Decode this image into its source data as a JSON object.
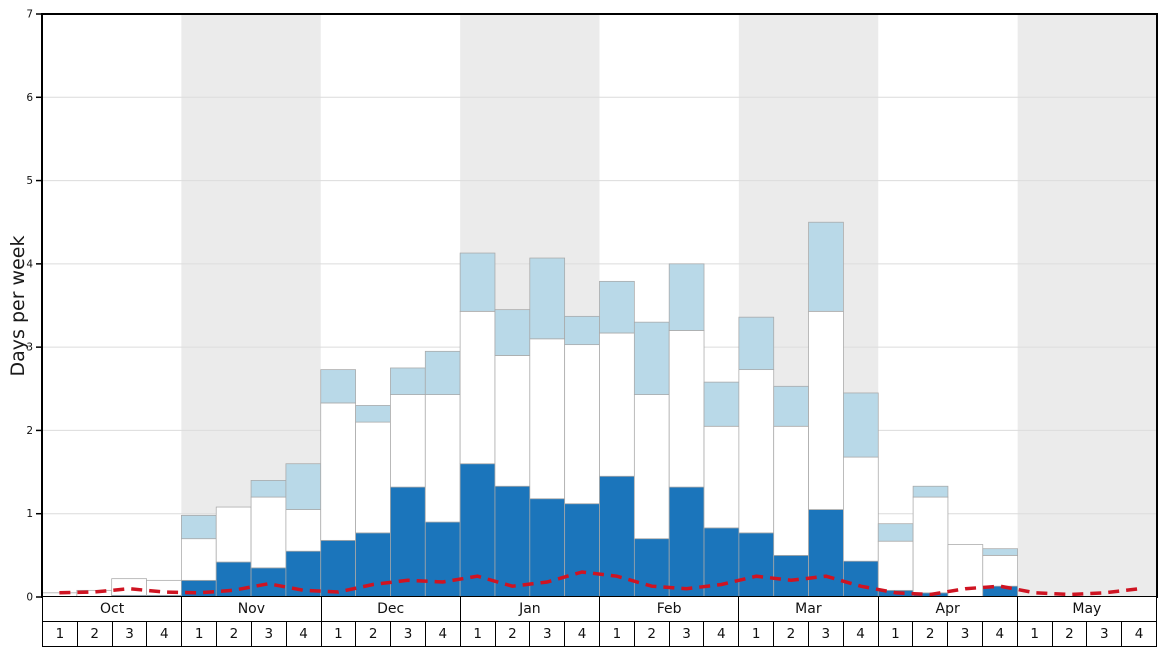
{
  "chart_data": {
    "type": "bar",
    "title": "",
    "xlabel": "",
    "ylabel": "Days per week",
    "ylim": [
      0,
      7
    ],
    "yticks": [
      0,
      1,
      2,
      3,
      4,
      5,
      6,
      7
    ],
    "grid": true,
    "legend": "none",
    "months": [
      "Oct",
      "Nov",
      "Dec",
      "Jan",
      "Feb",
      "Mar",
      "Apr",
      "May"
    ],
    "weeks_per_month": 4,
    "week_labels": [
      "1",
      "2",
      "3",
      "4"
    ],
    "shaded_months": [
      "Nov",
      "Jan",
      "Mar",
      "May"
    ],
    "colors": {
      "band": "#ebebeb",
      "grid": "#dcdcdc",
      "frame": "#000000",
      "bar_outline": "#a8a8a8"
    },
    "series": [
      {
        "name": "dark-blue-bars",
        "color": "#1b75bb",
        "values": [
          0,
          0,
          0.02,
          0.02,
          0.2,
          0.42,
          0.35,
          0.55,
          0.68,
          0.77,
          1.32,
          0.9,
          1.6,
          1.33,
          1.18,
          1.12,
          1.45,
          0.7,
          1.32,
          0.83,
          0.77,
          0.5,
          1.05,
          0.43,
          0.08,
          0.05,
          0,
          0.13,
          0,
          0,
          0,
          0
        ]
      },
      {
        "name": "white-bars",
        "color": "#ffffff",
        "values": [
          0.05,
          0.08,
          0.2,
          0.18,
          0.5,
          0.66,
          0.85,
          0.5,
          1.65,
          1.33,
          1.11,
          1.53,
          1.83,
          1.57,
          1.92,
          1.91,
          1.72,
          1.73,
          1.88,
          1.22,
          1.96,
          1.55,
          2.38,
          1.25,
          0.59,
          1.15,
          0.63,
          0.37,
          0,
          0,
          0,
          0
        ]
      },
      {
        "name": "light-blue-bars",
        "color": "#b9d9e8",
        "values": [
          0,
          0,
          0,
          0,
          0.28,
          0,
          0.2,
          0.55,
          0.4,
          0.2,
          0.32,
          0.52,
          0.7,
          0.55,
          0.97,
          0.34,
          0.62,
          0.87,
          0.8,
          0.53,
          0.63,
          0.48,
          1.07,
          0.77,
          0.21,
          0.13,
          0,
          0.08,
          0,
          0,
          0,
          0
        ]
      }
    ],
    "line": {
      "name": "red-dashed-line",
      "color": "#cf1422",
      "dash": "11 7",
      "width": 3.5,
      "values": [
        0.05,
        0.06,
        0.1,
        0.06,
        0.05,
        0.08,
        0.16,
        0.08,
        0.06,
        0.15,
        0.2,
        0.18,
        0.25,
        0.13,
        0.18,
        0.3,
        0.25,
        0.13,
        0.1,
        0.15,
        0.25,
        0.2,
        0.25,
        0.13,
        0.05,
        0.03,
        0.1,
        0.13,
        0.05,
        0.03,
        0.05,
        0.1
      ]
    }
  }
}
